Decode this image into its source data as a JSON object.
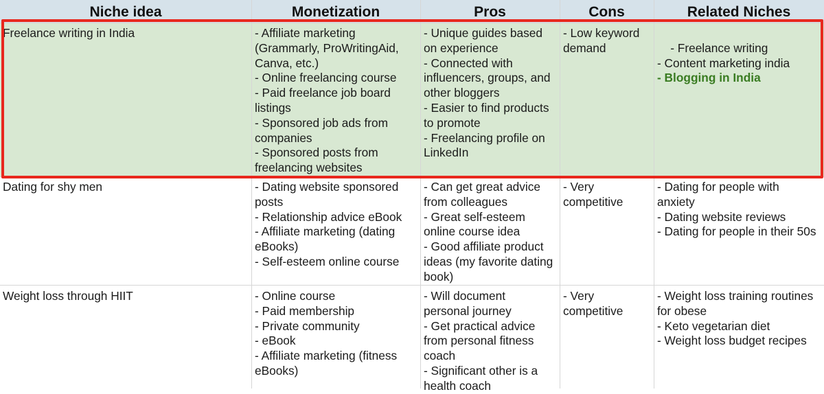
{
  "headers": [
    "Niche idea",
    "Monetization",
    "Pros",
    "Cons",
    "Related Niches"
  ],
  "rows": [
    {
      "niche": "Freelance writing in India",
      "monetization": "- Affiliate marketing\n(Grammarly, ProWritingAid,\nCanva, etc.)\n- Online freelancing course\n- Paid freelance job board\nlistings\n- Sponsored job ads from\ncompanies\n- Sponsored posts from\nfreelancing websites",
      "pros": "- Unique guides based\non experience\n- Connected with\ninfluencers, groups, and\nother bloggers\n- Easier to find products\nto promote\n- Freelancing profile on\nLinkedIn",
      "cons": "- Low keyword\ndemand",
      "related": "- Freelance writing\n- Content marketing india",
      "related_link": "- Blogging in India"
    },
    {
      "niche": "Dating for shy men",
      "monetization": "- Dating website sponsored\nposts\n- Relationship advice eBook\n- Affiliate marketing (dating\neBooks)\n- Self-esteem online course",
      "pros": "- Can get great advice\nfrom colleagues\n- Great self-esteem\nonline course idea\n- Good affiliate product\nideas (my favorite dating\nbook)",
      "cons": "- Very\ncompetitive",
      "related": "- Dating for people with\nanxiety\n- Dating website reviews\n- Dating for people in their 50s"
    },
    {
      "niche": "Weight loss through HIIT",
      "monetization": "- Online course\n- Paid membership\n- Private community\n- eBook\n- Affiliate marketing (fitness\neBooks)",
      "pros": "- Will document\npersonal journey\n- Get practical advice\nfrom personal fitness\ncoach\n- Significant other is a\nhealth coach",
      "cons": "- Very\ncompetitive",
      "related": "- Weight loss training routines\nfor obese\n- Keto vegetarian diet\n- Weight loss budget recipes"
    }
  ],
  "colors": {
    "header_bg": "#d6e2ea",
    "selected_row_bg": "#d8e8d2",
    "highlight_border": "#e8281e",
    "link_green": "#3a7c22"
  }
}
